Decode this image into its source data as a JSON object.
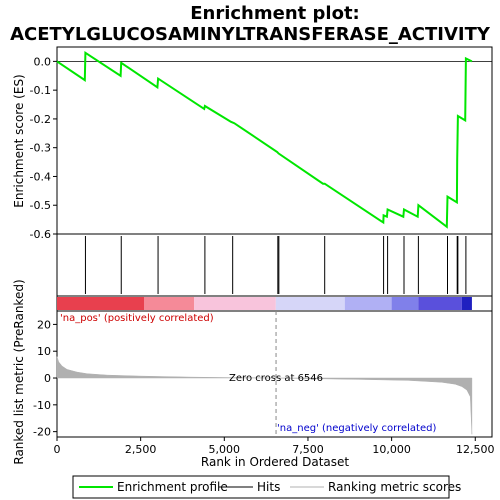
{
  "chart_data": {
    "type": "line",
    "title_line1": "Enrichment plot:",
    "title_line2": "ACETYLGLUCOSAMINYLTRANSFERASE_ACTIVITY",
    "xlabel": "Rank in Ordered Dataset",
    "ylabel_top": "Enrichment score (ES)",
    "ylabel_bottom": "Ranked list metric (PreRanked)",
    "xlim": [
      0,
      13000
    ],
    "x_ticks": [
      0,
      2500,
      5000,
      7500,
      10000,
      12500
    ],
    "x_tick_labels": [
      "0",
      "2,500",
      "5,000",
      "7,500",
      "10,000",
      "12,500"
    ],
    "es_ylim": [
      -0.6,
      0.05
    ],
    "es_y_ticks": [
      0.0,
      -0.1,
      -0.2,
      -0.3,
      -0.4,
      -0.5,
      -0.6
    ],
    "es_y_tick_labels": [
      "0.0",
      "-0.1",
      "-0.2",
      "-0.3",
      "-0.4",
      "-0.5",
      "-0.6"
    ],
    "metric_ylim": [
      -22,
      25
    ],
    "metric_y_ticks": [
      20,
      10,
      0,
      -10,
      -20
    ],
    "metric_y_tick_labels": [
      "20",
      "10",
      "0",
      "-10",
      "-20"
    ],
    "enrichment_profile": [
      [
        0,
        0.0
      ],
      [
        830,
        -0.065
      ],
      [
        850,
        0.03
      ],
      [
        1900,
        -0.05
      ],
      [
        1920,
        -0.005
      ],
      [
        3000,
        -0.09
      ],
      [
        3020,
        -0.06
      ],
      [
        4400,
        -0.165
      ],
      [
        4420,
        -0.155
      ],
      [
        5200,
        -0.21
      ],
      [
        5300,
        -0.215
      ],
      [
        6580,
        -0.315
      ],
      [
        6620,
        -0.32
      ],
      [
        7950,
        -0.425
      ],
      [
        8000,
        -0.425
      ],
      [
        9750,
        -0.56
      ],
      [
        9760,
        -0.535
      ],
      [
        9860,
        -0.54
      ],
      [
        9880,
        -0.515
      ],
      [
        10350,
        -0.54
      ],
      [
        10370,
        -0.515
      ],
      [
        10780,
        -0.54
      ],
      [
        10800,
        -0.5
      ],
      [
        11650,
        -0.575
      ],
      [
        11670,
        -0.47
      ],
      [
        11950,
        -0.49
      ],
      [
        11960,
        -0.34
      ],
      [
        11980,
        -0.19
      ],
      [
        12200,
        -0.205
      ],
      [
        12220,
        0.01
      ],
      [
        12400,
        0.0
      ]
    ],
    "hits": [
      850,
      1920,
      3020,
      4420,
      5250,
      6600,
      6630,
      8000,
      9760,
      9880,
      10370,
      10800,
      11670,
      11960,
      11980,
      12220
    ],
    "ranked_metric_profile": [
      [
        0,
        8
      ],
      [
        50,
        6
      ],
      [
        150,
        4.5
      ],
      [
        300,
        3.2
      ],
      [
        600,
        2.2
      ],
      [
        900,
        1.6
      ],
      [
        1500,
        1.1
      ],
      [
        2500,
        0.7
      ],
      [
        4000,
        0.35
      ],
      [
        5500,
        0.12
      ],
      [
        6546,
        0
      ],
      [
        7500,
        -0.2
      ],
      [
        9000,
        -0.5
      ],
      [
        10500,
        -0.9
      ],
      [
        11500,
        -1.6
      ],
      [
        11900,
        -2.3
      ],
      [
        12100,
        -3.2
      ],
      [
        12250,
        -4.5
      ],
      [
        12350,
        -7
      ],
      [
        12400,
        -21
      ]
    ],
    "gradient_bar": {
      "segments": [
        {
          "from": 0,
          "to": 2600,
          "color": "#e8404e"
        },
        {
          "from": 2600,
          "to": 4100,
          "color": "#f58a98"
        },
        {
          "from": 4100,
          "to": 6540,
          "color": "#f8c4dc"
        },
        {
          "from": 6540,
          "to": 8600,
          "color": "#d6d6f8"
        },
        {
          "from": 8600,
          "to": 10000,
          "color": "#b0b0f4"
        },
        {
          "from": 10000,
          "to": 10800,
          "color": "#8080ea"
        },
        {
          "from": 10800,
          "to": 12100,
          "color": "#5a50dc"
        },
        {
          "from": 12100,
          "to": 12400,
          "color": "#2020c0"
        }
      ]
    },
    "zero_cross_rank": 6546,
    "zero_cross_label": "Zero cross at 6546",
    "pos_label": "'na_pos' (positively correlated)",
    "neg_label": "'na_neg' (negatively correlated)",
    "legend": [
      "Enrichment profile",
      "Hits",
      "Ranking metric scores"
    ],
    "colors": {
      "profile": "#00e600",
      "hits": "#000000",
      "metric": "#b0b0b0",
      "pos_label": "#cc0000",
      "neg_label": "#0000cc"
    }
  }
}
